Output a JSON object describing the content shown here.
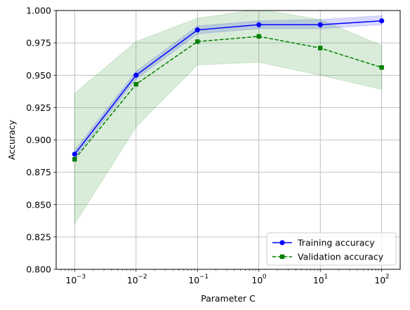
{
  "chart_data": {
    "type": "line",
    "xlabel": "Parameter C",
    "ylabel": "Accuracy",
    "x_scale": "log",
    "x": [
      0.001,
      0.01,
      0.1,
      1,
      10,
      100
    ],
    "x_tick_exponents": [
      "-3",
      "-2",
      "-1",
      "0",
      "1",
      "2"
    ],
    "x_tick_base": "10",
    "xlim": [
      0.0005,
      200
    ],
    "ylim": [
      0.8,
      1.0
    ],
    "y_ticks": [
      "0.800",
      "0.825",
      "0.850",
      "0.875",
      "0.900",
      "0.925",
      "0.950",
      "0.975",
      "1.000"
    ],
    "grid": true,
    "legend_position": "lower-right",
    "series": [
      {
        "name": "Training accuracy",
        "values": [
          0.889,
          0.95,
          0.985,
          0.989,
          0.989,
          0.992
        ],
        "upper": [
          0.892,
          0.953,
          0.988,
          0.992,
          0.993,
          0.996
        ],
        "lower": [
          0.886,
          0.947,
          0.982,
          0.986,
          0.986,
          0.989
        ],
        "color": "#0000ff",
        "band_color": "#0000ff",
        "marker": "circle",
        "linestyle": "solid"
      },
      {
        "name": "Validation accuracy",
        "values": [
          0.885,
          0.943,
          0.976,
          0.98,
          0.971,
          0.956
        ],
        "upper": [
          0.936,
          0.976,
          0.994,
          1.001,
          0.993,
          0.973
        ],
        "lower": [
          0.835,
          0.91,
          0.958,
          0.96,
          0.95,
          0.939
        ],
        "color": "#008000",
        "band_color": "#008000",
        "marker": "square",
        "linestyle": "dashed"
      }
    ]
  }
}
